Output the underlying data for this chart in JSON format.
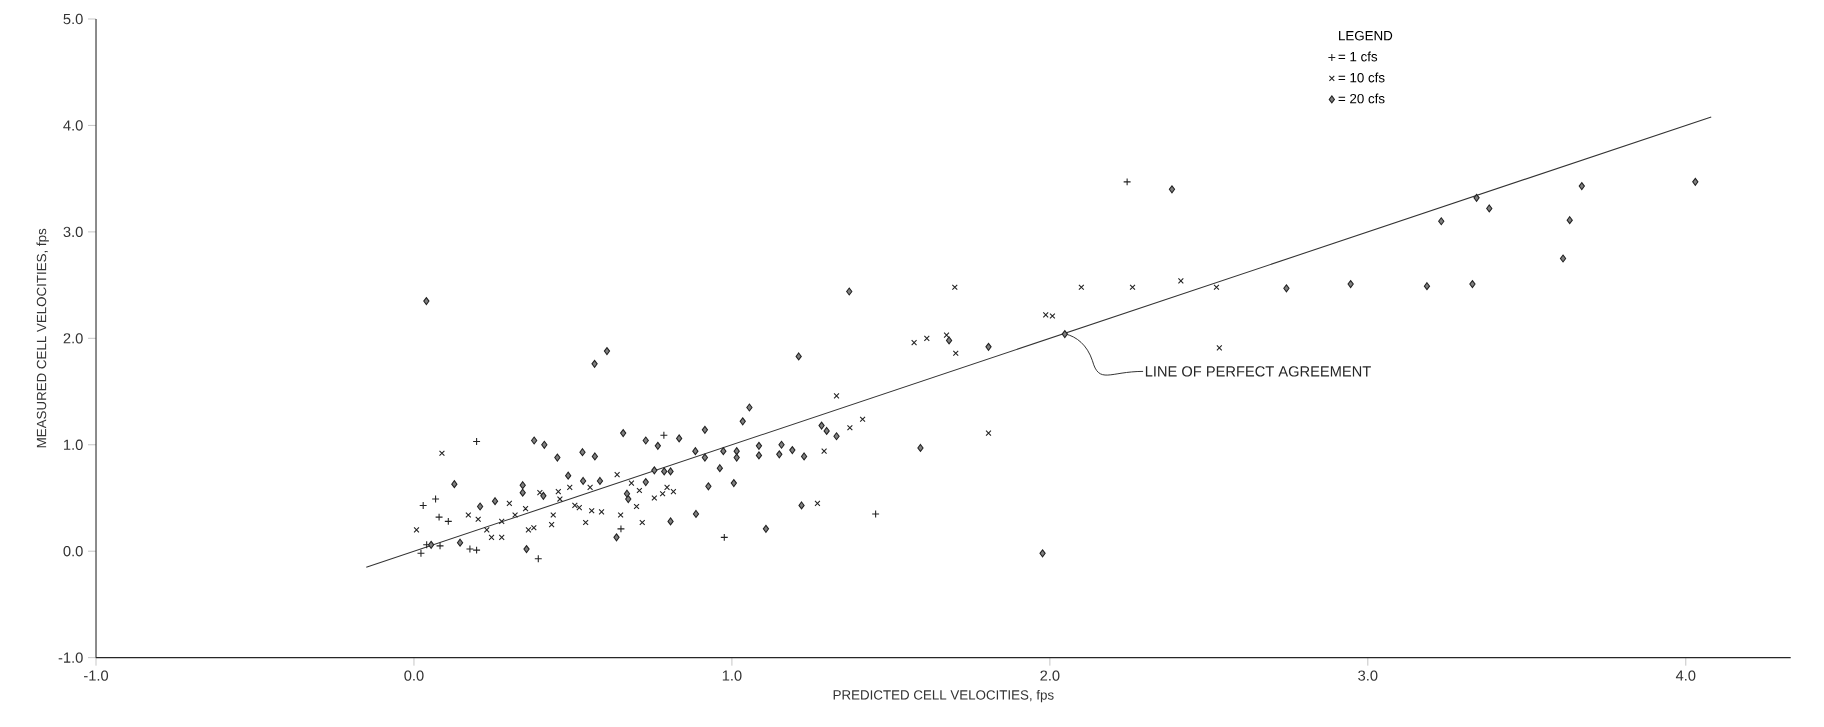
{
  "chart_data": {
    "type": "scatter",
    "xlabel": "PREDICTED CELL VELOCITIES, fps",
    "ylabel": "MEASURED CELL VELOCITIES, fps",
    "legend_title": "LEGEND",
    "legend": "top right",
    "xlim": [
      -1,
      4.33
    ],
    "ylim": [
      -1,
      5
    ],
    "xticks": [
      {
        "value": -1,
        "label": "-1.0"
      },
      {
        "value": 0,
        "label": "0.0"
      },
      {
        "value": 1,
        "label": "1.0"
      },
      {
        "value": 2,
        "label": "2.0"
      },
      {
        "value": 3,
        "label": "3.0"
      },
      {
        "value": 4,
        "label": "4.0"
      }
    ],
    "yticks": [
      {
        "value": -1,
        "label": "-1.0"
      },
      {
        "value": 0,
        "label": "0.0"
      },
      {
        "value": 1,
        "label": "1.0"
      },
      {
        "value": 2,
        "label": "2.0"
      },
      {
        "value": 3,
        "label": "3.0"
      },
      {
        "value": 4,
        "label": "4.0"
      },
      {
        "value": 5,
        "label": "5.0"
      }
    ],
    "annotations": [
      {
        "text": "LINE OF PERFECT AGREEMENT",
        "x": 2.05,
        "y": 2.04
      }
    ],
    "series": [
      {
        "name": "= 1 cfs",
        "marker": "plus",
        "color": "#222222",
        "x": [
          0.029,
          0.068,
          0.079,
          0.108,
          0.197,
          0.786,
          0.651,
          0.976,
          0.197,
          0.176,
          0.022,
          0.04,
          0.391,
          0.082,
          2.243,
          1.452
        ],
        "values": [
          0.43,
          0.49,
          0.32,
          0.28,
          1.03,
          1.09,
          0.21,
          0.13,
          0.01,
          0.02,
          -0.02,
          0.06,
          -0.07,
          0.05,
          3.47,
          0.35
        ]
      },
      {
        "name": "= 10 cfs",
        "marker": "cross",
        "color": "#222222",
        "x": [
          0.088,
          0.639,
          0.684,
          0.709,
          0.756,
          0.782,
          0.796,
          0.816,
          0.7,
          0.65,
          0.718,
          0.59,
          0.559,
          0.54,
          0.506,
          0.52,
          0.433,
          0.377,
          0.36,
          0.276,
          0.244,
          0.454,
          0.49,
          0.459,
          0.438,
          0.351,
          0.318,
          0.276,
          0.202,
          0.171,
          0.008,
          1.29,
          1.269,
          0.554,
          0.3,
          0.396,
          0.229,
          1.701,
          2.099,
          2.26,
          2.412,
          2.524,
          2.533,
          1.987,
          2.008,
          1.573,
          1.613,
          1.675,
          1.704,
          1.807,
          1.329,
          1.371,
          1.411
        ],
        "values": [
          0.92,
          0.72,
          0.64,
          0.57,
          0.5,
          0.54,
          0.6,
          0.56,
          0.42,
          0.34,
          0.27,
          0.37,
          0.38,
          0.27,
          0.43,
          0.41,
          0.25,
          0.22,
          0.2,
          0.13,
          0.13,
          0.56,
          0.6,
          0.49,
          0.34,
          0.4,
          0.34,
          0.28,
          0.3,
          0.34,
          0.2,
          0.94,
          0.45,
          0.6,
          0.45,
          0.55,
          0.2,
          2.48,
          2.48,
          2.48,
          2.54,
          2.48,
          1.91,
          2.22,
          2.21,
          1.96,
          2.0,
          2.03,
          1.86,
          1.11,
          1.46,
          1.16,
          1.24
        ]
      },
      {
        "name": "= 20 cfs",
        "marker": "diamond",
        "color": "#222222",
        "x": [
          0.039,
          0.607,
          0.568,
          1.21,
          1.055,
          1.034,
          0.915,
          0.658,
          0.729,
          0.767,
          0.834,
          0.378,
          0.41,
          0.451,
          0.53,
          0.569,
          0.885,
          0.915,
          0.973,
          1.015,
          1.015,
          0.962,
          1.085,
          1.085,
          1.156,
          1.19,
          1.227,
          1.149,
          1.282,
          1.006,
          0.926,
          1.219,
          1.107,
          0.887,
          0.807,
          0.637,
          0.354,
          0.127,
          0.255,
          0.208,
          0.342,
          0.342,
          0.756,
          0.787,
          0.807,
          0.729,
          1.298,
          0.585,
          0.532,
          0.485,
          0.407,
          0.67,
          0.674,
          0.145,
          0.054,
          1.369,
          2.384,
          2.744,
          1.807,
          1.593,
          1.977,
          1.683,
          2.047,
          1.329,
          2.946,
          3.186,
          3.329,
          3.231,
          3.342,
          3.382,
          3.614,
          3.635,
          3.673,
          4.03
        ],
        "values": [
          2.35,
          1.88,
          1.76,
          1.83,
          1.35,
          1.22,
          1.14,
          1.11,
          1.04,
          0.99,
          1.06,
          1.04,
          1.0,
          0.88,
          0.93,
          0.89,
          0.94,
          0.88,
          0.94,
          0.94,
          0.88,
          0.78,
          0.99,
          0.9,
          1.0,
          0.95,
          0.89,
          0.91,
          1.18,
          0.64,
          0.61,
          0.43,
          0.21,
          0.35,
          0.28,
          0.13,
          0.02,
          0.63,
          0.47,
          0.42,
          0.62,
          0.55,
          0.76,
          0.75,
          0.75,
          0.65,
          1.13,
          0.66,
          0.66,
          0.71,
          0.52,
          0.54,
          0.49,
          0.08,
          0.06,
          2.44,
          3.4,
          2.47,
          1.92,
          0.97,
          -0.02,
          1.98,
          2.04,
          1.08,
          2.51,
          2.49,
          2.51,
          3.1,
          3.32,
          3.22,
          2.75,
          3.11,
          3.43,
          3.47
        ]
      },
      {
        "type": "line",
        "marker": "none",
        "color": "#333333",
        "x": [
          -0.15,
          4.08
        ],
        "values": [
          -0.15,
          4.08
        ]
      }
    ]
  }
}
